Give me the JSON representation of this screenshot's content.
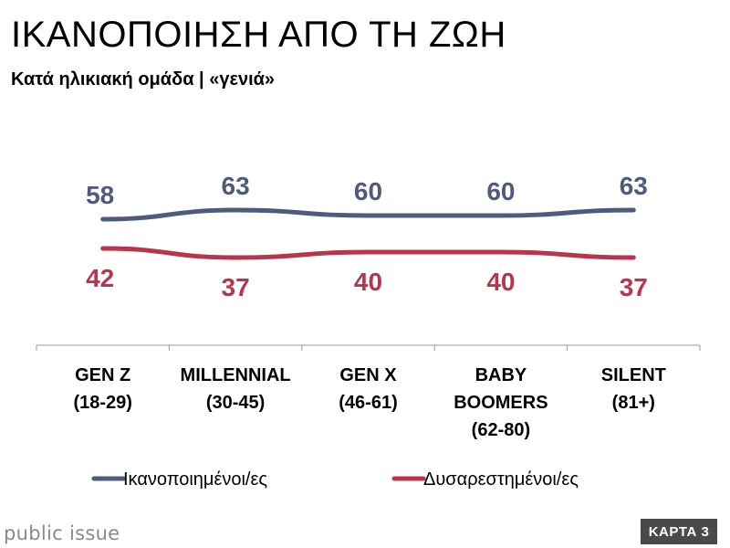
{
  "header": {
    "title": "ΙΚΑΝΟΠΟΙΗΣΗ ΑΠΟ ΤΗ ΖΩΗ",
    "subtitle": "Κατά ηλικιακή ομάδα | «γενιά»"
  },
  "footer": {
    "brand": "public issue",
    "badge": "ΚΑΡΤΑ 3"
  },
  "chart_data": {
    "type": "line",
    "categories": [
      [
        "GEN Z",
        "(18-29)"
      ],
      [
        "MILLENNIAL",
        "(30-45)"
      ],
      [
        "GEN X",
        "(46-61)"
      ],
      [
        "BABY",
        "BOOMERS",
        "(62-80)"
      ],
      [
        "SILENT",
        "(81+)"
      ]
    ],
    "series": [
      {
        "name": "Ικανοποιημένοι/ες",
        "values": [
          58,
          63,
          60,
          60,
          63
        ],
        "color": "#4f5b7d"
      },
      {
        "name": "Δυσαρεστημένοι/ες",
        "values": [
          42,
          37,
          40,
          40,
          37
        ],
        "color": "#b8354d"
      }
    ],
    "ylim": [
      0,
      100
    ],
    "grid": false,
    "legend": "bottom"
  }
}
